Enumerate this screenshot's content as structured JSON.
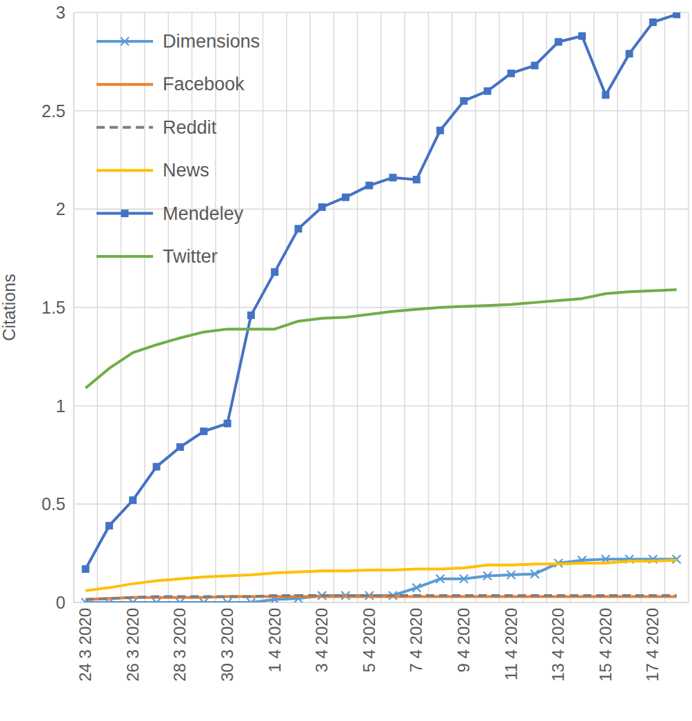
{
  "chart_data": {
    "type": "line",
    "y_label": "Citations",
    "categories": [
      "24 3 2020",
      null,
      "26 3 2020",
      null,
      "28 3 2020",
      null,
      "30 3 2020",
      null,
      "1 4 2020",
      null,
      "3 4 2020",
      null,
      "5 4 2020",
      null,
      "7 4 2020",
      null,
      "9 4 2020",
      null,
      "11 4 2020",
      null,
      "13 4 2020",
      null,
      "15 4 2020",
      null,
      "17 4 2020",
      null
    ],
    "ylim": [
      0,
      3
    ],
    "yticks": [
      0,
      0.5,
      1,
      1.5,
      2,
      2.5,
      3
    ],
    "grid": true,
    "legend": "top-left",
    "series": [
      {
        "name": "Dimensions",
        "color": "#5b9bd5",
        "marker": "x",
        "line_style": "solid",
        "values": [
          0,
          0,
          0,
          0,
          0,
          0,
          0,
          0,
          0.015,
          0.02,
          0.035,
          0.035,
          0.035,
          0.035,
          0.075,
          0.12,
          0.12,
          0.135,
          0.14,
          0.145,
          0.2,
          0.215,
          0.22,
          0.22,
          0.22,
          0.22
        ]
      },
      {
        "name": "Facebook",
        "color": "#ed7d31",
        "marker": "none",
        "line_style": "solid",
        "values": [
          0.015,
          0.02,
          0.025,
          0.025,
          0.025,
          0.025,
          0.03,
          0.03,
          0.03,
          0.03,
          0.03,
          0.03,
          0.03,
          0.03,
          0.03,
          0.03,
          0.03,
          0.03,
          0.03,
          0.03,
          0.03,
          0.03,
          0.03,
          0.03,
          0.03,
          0.03
        ]
      },
      {
        "name": "Reddit",
        "color": "#7f7f7f",
        "marker": "none",
        "line_style": "dashed",
        "values": [
          0.015,
          0.02,
          0.025,
          0.03,
          0.03,
          0.03,
          0.03,
          0.03,
          0.035,
          0.035,
          0.035,
          0.035,
          0.035,
          0.035,
          0.035,
          0.035,
          0.035,
          0.035,
          0.035,
          0.035,
          0.035,
          0.035,
          0.035,
          0.035,
          0.035,
          0.035
        ]
      },
      {
        "name": "News",
        "color": "#ffc000",
        "marker": "none",
        "line_style": "solid",
        "values": [
          0.06,
          0.075,
          0.095,
          0.11,
          0.12,
          0.13,
          0.135,
          0.14,
          0.15,
          0.155,
          0.16,
          0.16,
          0.165,
          0.165,
          0.17,
          0.17,
          0.175,
          0.19,
          0.19,
          0.195,
          0.195,
          0.2,
          0.2,
          0.21,
          0.21,
          0.215
        ]
      },
      {
        "name": "Mendeley",
        "color": "#4472c4",
        "marker": "square",
        "line_style": "solid",
        "values": [
          0.17,
          0.39,
          0.52,
          0.69,
          0.79,
          0.87,
          0.91,
          1.46,
          1.68,
          1.9,
          2.01,
          2.06,
          2.12,
          2.16,
          2.15,
          2.4,
          2.55,
          2.6,
          2.69,
          2.73,
          2.85,
          2.88,
          2.58,
          2.79,
          2.95,
          2.99
        ]
      },
      {
        "name": "Twitter",
        "color": "#70ad47",
        "marker": "none",
        "line_style": "solid",
        "values": [
          1.09,
          1.19,
          1.27,
          1.31,
          1.345,
          1.375,
          1.39,
          1.39,
          1.39,
          1.43,
          1.445,
          1.45,
          1.465,
          1.48,
          1.49,
          1.5,
          1.505,
          1.51,
          1.515,
          1.525,
          1.535,
          1.545,
          1.57,
          1.58,
          1.585,
          1.59
        ]
      }
    ]
  }
}
